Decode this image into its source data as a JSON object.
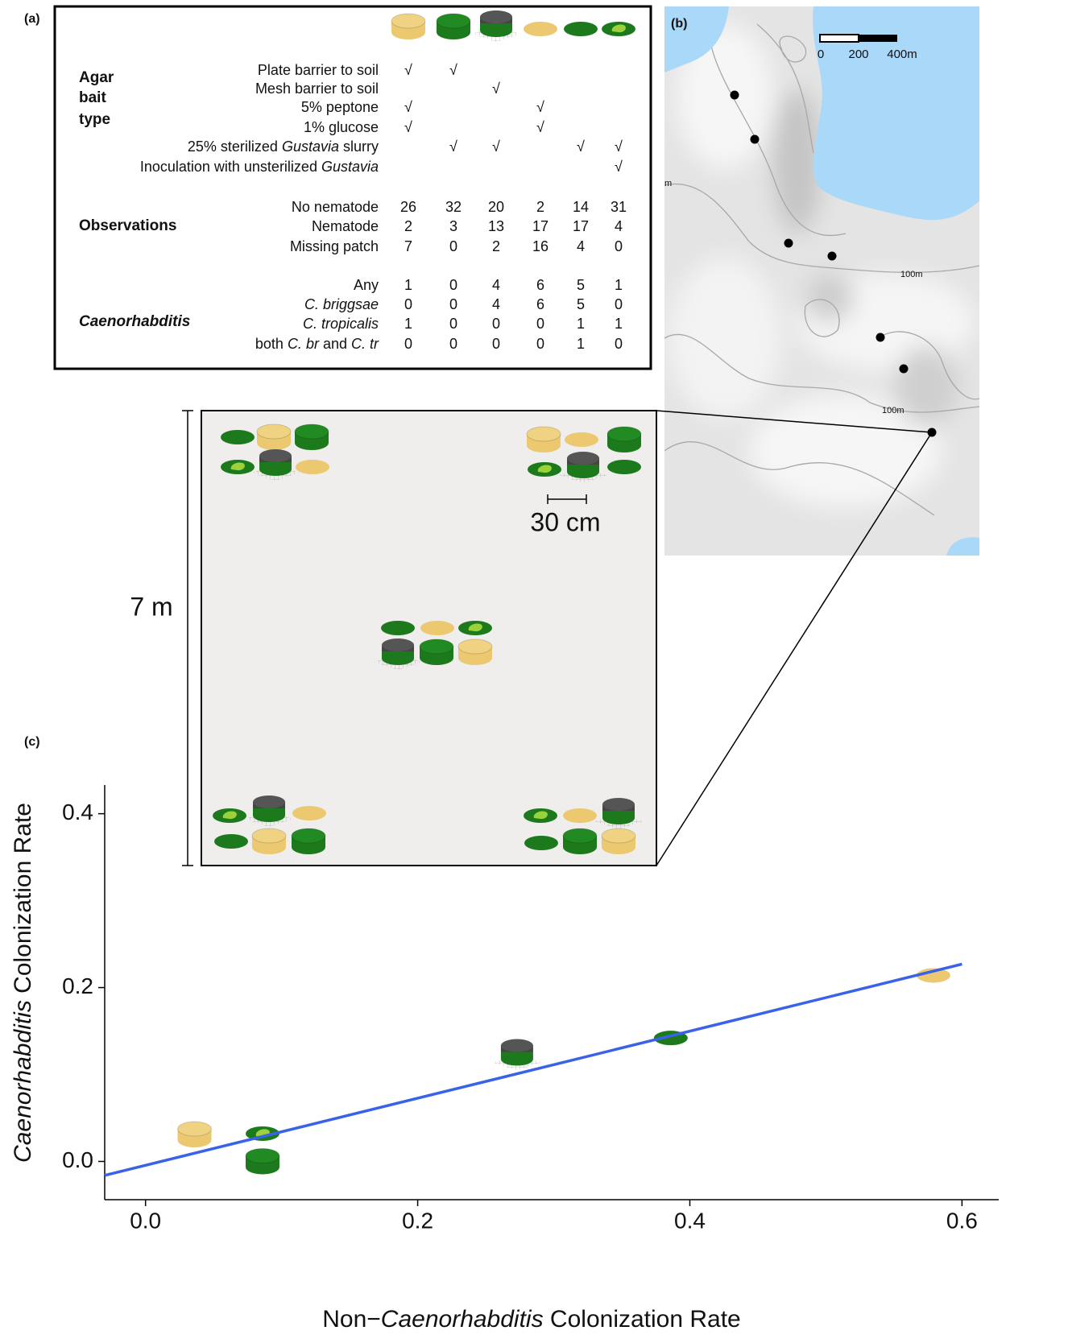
{
  "panel_a": {
    "label": "(a)",
    "groups": [
      {
        "label_lines": [
          "Agar",
          "bait",
          "type"
        ],
        "rows": [
          {
            "label": [
              {
                "text": "Plate barrier to soil"
              }
            ],
            "cells": [
              "√",
              "√",
              null,
              null,
              null,
              null
            ]
          },
          {
            "label": [
              {
                "text": "Mesh barrier to soil"
              }
            ],
            "cells": [
              null,
              null,
              "√",
              null,
              null,
              null
            ]
          },
          {
            "label": [
              {
                "text": "5% peptone"
              }
            ],
            "cells": [
              "√",
              null,
              null,
              "√",
              null,
              null
            ]
          },
          {
            "label": [
              {
                "text": "1% glucose"
              }
            ],
            "cells": [
              "√",
              null,
              null,
              "√",
              null,
              null
            ]
          },
          {
            "label": [
              {
                "text": "25% sterilized "
              },
              {
                "text": "Gustavia",
                "italic": true
              },
              {
                "text": " slurry"
              }
            ],
            "cells": [
              null,
              "√",
              "√",
              null,
              "√",
              "√"
            ]
          },
          {
            "label": [
              {
                "text": "Inoculation with unsterilized "
              },
              {
                "text": "Gustavia",
                "italic": true
              }
            ],
            "cells": [
              null,
              null,
              null,
              null,
              null,
              "√"
            ]
          }
        ]
      },
      {
        "label_lines": [
          "Observations"
        ],
        "rows": [
          {
            "label": [
              {
                "text": "No nematode"
              }
            ],
            "cells": [
              26,
              32,
              20,
              2,
              14,
              31
            ]
          },
          {
            "label": [
              {
                "text": "Nematode"
              }
            ],
            "cells": [
              2,
              3,
              13,
              17,
              17,
              4
            ]
          },
          {
            "label": [
              {
                "text": "Missing patch"
              }
            ],
            "cells": [
              7,
              0,
              2,
              16,
              4,
              0
            ]
          }
        ]
      },
      {
        "label_lines": [
          "Caenorhabditis"
        ],
        "italic": true,
        "rows": [
          {
            "label": [
              {
                "text": "Any"
              }
            ],
            "cells": [
              1,
              0,
              4,
              6,
              5,
              1
            ]
          },
          {
            "label": [
              {
                "text": "C. briggsae",
                "italic": true
              }
            ],
            "cells": [
              0,
              0,
              4,
              6,
              5,
              0
            ]
          },
          {
            "label": [
              {
                "text": "C. tropicalis",
                "italic": true
              }
            ],
            "cells": [
              1,
              0,
              0,
              0,
              1,
              1
            ]
          },
          {
            "label": [
              {
                "text": "both "
              },
              {
                "text": "C. br",
                "italic": true
              },
              {
                "text": " and "
              },
              {
                "text": "C. tr",
                "italic": true
              }
            ],
            "cells": [
              0,
              0,
              0,
              0,
              1,
              0
            ]
          }
        ]
      }
    ]
  },
  "panel_b": {
    "label": "(b)",
    "scale_labels": [
      "0",
      "200",
      "400m"
    ],
    "contour_labels": [
      "100m",
      "100m"
    ]
  },
  "inset": {
    "height_label": "7 m",
    "spacing_label": "30 cm"
  },
  "chart_data": {
    "type": "scatter",
    "label": "(c)",
    "x_label": [
      {
        "text": "Non−"
      },
      {
        "text": "Caenorhabditis",
        "italic": true
      },
      {
        "text": " Colonization Rate"
      }
    ],
    "y_label": [
      {
        "text": "Caenorhabditis",
        "italic": true
      },
      {
        "text": " Colonization Rate"
      }
    ],
    "x": [
      0.036,
      0.086,
      0.273,
      0.579,
      0.386,
      0.086
    ],
    "values": [
      0.031,
      0.0,
      0.125,
      0.214,
      0.142,
      0.032
    ],
    "markers": [
      "plate-yellow",
      "plate-green",
      "mesh",
      "flat-yellow",
      "flat-green",
      "inoculated"
    ],
    "fit_line": {
      "x": [
        -0.03,
        0.6
      ],
      "y": [
        -0.016,
        0.227
      ],
      "color": "#3a62e8"
    },
    "xlim": [
      -0.03,
      0.627
    ],
    "ylim": [
      -0.044,
      0.433
    ],
    "xticks": [
      {
        "value": 0,
        "label": "0.0"
      },
      0.2,
      0.4,
      0.6
    ],
    "yticks": [
      {
        "value": 0,
        "label": "0.0"
      },
      0.2,
      0.4
    ]
  }
}
